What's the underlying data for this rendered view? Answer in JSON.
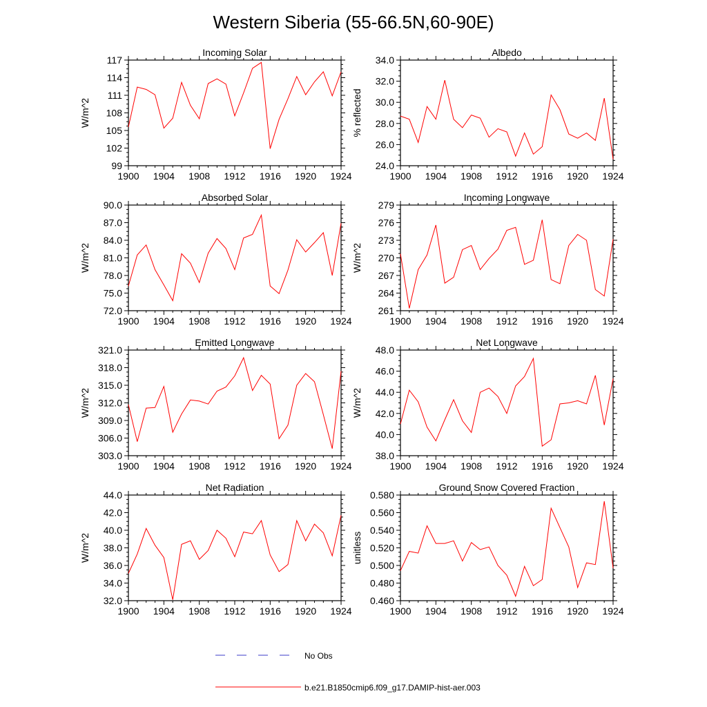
{
  "figure": {
    "title": "Western Siberia (55-66.5N,60-90E)"
  },
  "legend": {
    "entries": [
      {
        "label": "No Obs",
        "color": "#3b3bc8",
        "dash": "dashed"
      },
      {
        "label": "b.e21.B1850cmip6.f09_g17.DAMIP-hist-aer.003",
        "color": "#ff0000",
        "dash": "solid"
      }
    ]
  },
  "chart_data": [
    {
      "type": "line",
      "title": "Incoming Solar",
      "ylabel": "W/m^2",
      "x": [
        1900,
        1901,
        1902,
        1903,
        1904,
        1905,
        1906,
        1907,
        1908,
        1909,
        1910,
        1911,
        1912,
        1913,
        1914,
        1915,
        1916,
        1917,
        1918,
        1919,
        1920,
        1921,
        1922,
        1923,
        1924
      ],
      "xlim": [
        1900,
        1924
      ],
      "xticks": [
        "1900",
        "1904",
        "1908",
        "1912",
        "1916",
        "1920",
        "1924"
      ],
      "ylim": [
        99,
        117
      ],
      "yticks": [
        "99",
        "102",
        "105",
        "108",
        "111",
        "114",
        "117"
      ],
      "series": [
        {
          "values": [
            105.6,
            112.4,
            112.0,
            111.1,
            105.4,
            107.1,
            113.2,
            109.3,
            107.0,
            113.0,
            113.8,
            112.9,
            107.5,
            111.4,
            115.6,
            116.6,
            101.9,
            106.9,
            110.4,
            114.2,
            111.1,
            113.3,
            115.0,
            110.9,
            115.0
          ]
        }
      ]
    },
    {
      "type": "line",
      "title": "Albedo",
      "ylabel": "% reflected",
      "x": [
        1900,
        1901,
        1902,
        1903,
        1904,
        1905,
        1906,
        1907,
        1908,
        1909,
        1910,
        1911,
        1912,
        1913,
        1914,
        1915,
        1916,
        1917,
        1918,
        1919,
        1920,
        1921,
        1922,
        1923,
        1924
      ],
      "xlim": [
        1900,
        1924
      ],
      "xticks": [
        "1900",
        "1904",
        "1908",
        "1912",
        "1916",
        "1920",
        "1924"
      ],
      "ylim": [
        24,
        34
      ],
      "yticks": [
        "24.0",
        "26.0",
        "28.0",
        "30.0",
        "32.0",
        "34.0"
      ],
      "series": [
        {
          "values": [
            28.7,
            28.4,
            26.2,
            29.6,
            28.4,
            32.1,
            28.4,
            27.6,
            28.8,
            28.5,
            26.7,
            27.5,
            27.2,
            24.9,
            27.1,
            25.1,
            25.8,
            30.7,
            29.3,
            27.0,
            26.6,
            27.1,
            26.4,
            30.4,
            24.6
          ]
        }
      ]
    },
    {
      "type": "line",
      "title": "Absorbed Solar",
      "ylabel": "W/m^2",
      "x": [
        1900,
        1901,
        1902,
        1903,
        1904,
        1905,
        1906,
        1907,
        1908,
        1909,
        1910,
        1911,
        1912,
        1913,
        1914,
        1915,
        1916,
        1917,
        1918,
        1919,
        1920,
        1921,
        1922,
        1923,
        1924
      ],
      "xlim": [
        1900,
        1924
      ],
      "xticks": [
        "1900",
        "1904",
        "1908",
        "1912",
        "1916",
        "1920",
        "1924"
      ],
      "ylim": [
        72,
        90
      ],
      "yticks": [
        "72.0",
        "75.0",
        "78.0",
        "81.0",
        "84.0",
        "87.0",
        "90.0"
      ],
      "series": [
        {
          "values": [
            76.2,
            81.5,
            83.2,
            79.0,
            76.4,
            73.7,
            81.7,
            80.1,
            76.8,
            81.8,
            84.3,
            82.6,
            79.0,
            84.4,
            85.0,
            88.3,
            76.2,
            74.9,
            78.9,
            84.1,
            82.0,
            83.6,
            85.3,
            78.0,
            86.9
          ]
        }
      ]
    },
    {
      "type": "line",
      "title": "Incoming Longwave",
      "ylabel": "W/m^2",
      "x": [
        1900,
        1901,
        1902,
        1903,
        1904,
        1905,
        1906,
        1907,
        1908,
        1909,
        1910,
        1911,
        1912,
        1913,
        1914,
        1915,
        1916,
        1917,
        1918,
        1919,
        1920,
        1921,
        1922,
        1923,
        1924
      ],
      "xlim": [
        1900,
        1924
      ],
      "xticks": [
        "1900",
        "1904",
        "1908",
        "1912",
        "1916",
        "1920",
        "1924"
      ],
      "ylim": [
        261,
        279
      ],
      "yticks": [
        "261",
        "264",
        "267",
        "270",
        "273",
        "276",
        "279"
      ],
      "series": [
        {
          "values": [
            270.7,
            261.4,
            268.0,
            270.5,
            275.6,
            265.7,
            266.7,
            271.4,
            272.1,
            268.0,
            269.9,
            271.5,
            274.7,
            275.2,
            268.9,
            269.6,
            276.5,
            266.3,
            265.6,
            272.1,
            274.0,
            273.0,
            264.6,
            263.5,
            273.2
          ]
        }
      ]
    },
    {
      "type": "line",
      "title": "Emitted Longwave",
      "ylabel": "W/m^2",
      "x": [
        1900,
        1901,
        1902,
        1903,
        1904,
        1905,
        1906,
        1907,
        1908,
        1909,
        1910,
        1911,
        1912,
        1913,
        1914,
        1915,
        1916,
        1917,
        1918,
        1919,
        1920,
        1921,
        1922,
        1923,
        1924
      ],
      "xlim": [
        1900,
        1924
      ],
      "xticks": [
        "1900",
        "1904",
        "1908",
        "1912",
        "1916",
        "1920",
        "1924"
      ],
      "ylim": [
        303,
        321
      ],
      "yticks": [
        "303.0",
        "306.0",
        "309.0",
        "312.0",
        "315.0",
        "318.0",
        "321.0"
      ],
      "series": [
        {
          "values": [
            311.7,
            305.4,
            311.1,
            311.2,
            314.8,
            307.0,
            310.1,
            312.5,
            312.3,
            311.8,
            314.0,
            314.7,
            316.6,
            319.7,
            314.1,
            316.7,
            315.2,
            305.9,
            308.2,
            315.0,
            317.0,
            315.6,
            310.0,
            304.2,
            317.4
          ]
        }
      ]
    },
    {
      "type": "line",
      "title": "Net Longwave",
      "ylabel": "W/m^2",
      "x": [
        1900,
        1901,
        1902,
        1903,
        1904,
        1905,
        1906,
        1907,
        1908,
        1909,
        1910,
        1911,
        1912,
        1913,
        1914,
        1915,
        1916,
        1917,
        1918,
        1919,
        1920,
        1921,
        1922,
        1923,
        1924
      ],
      "xlim": [
        1900,
        1924
      ],
      "xticks": [
        "1900",
        "1904",
        "1908",
        "1912",
        "1916",
        "1920",
        "1924"
      ],
      "ylim": [
        38,
        48
      ],
      "yticks": [
        "38.0",
        "40.0",
        "42.0",
        "44.0",
        "46.0",
        "48.0"
      ],
      "series": [
        {
          "values": [
            41.0,
            44.2,
            43.1,
            40.7,
            39.4,
            41.4,
            43.3,
            41.3,
            40.2,
            44.0,
            44.4,
            43.6,
            42.0,
            44.6,
            45.5,
            47.2,
            38.9,
            39.5,
            42.9,
            43.0,
            43.2,
            42.9,
            45.6,
            40.9,
            45.3
          ]
        }
      ]
    },
    {
      "type": "line",
      "title": "Net Radiation",
      "ylabel": "W/m^2",
      "x": [
        1900,
        1901,
        1902,
        1903,
        1904,
        1905,
        1906,
        1907,
        1908,
        1909,
        1910,
        1911,
        1912,
        1913,
        1914,
        1915,
        1916,
        1917,
        1918,
        1919,
        1920,
        1921,
        1922,
        1923,
        1924
      ],
      "xlim": [
        1900,
        1924
      ],
      "xticks": [
        "1900",
        "1904",
        "1908",
        "1912",
        "1916",
        "1920",
        "1924"
      ],
      "ylim": [
        32,
        44
      ],
      "yticks": [
        "32.0",
        "34.0",
        "36.0",
        "38.0",
        "40.0",
        "42.0",
        "44.0"
      ],
      "series": [
        {
          "values": [
            35.1,
            37.3,
            40.2,
            38.3,
            36.9,
            32.1,
            38.4,
            38.8,
            36.7,
            37.7,
            40.0,
            39.1,
            37.0,
            39.8,
            39.6,
            41.1,
            37.2,
            35.3,
            36.1,
            41.1,
            38.8,
            40.7,
            39.7,
            37.1,
            41.7
          ]
        }
      ]
    },
    {
      "type": "line",
      "title": "Ground Snow Covered Fraction",
      "ylabel": "unitless",
      "x": [
        1900,
        1901,
        1902,
        1903,
        1904,
        1905,
        1906,
        1907,
        1908,
        1909,
        1910,
        1911,
        1912,
        1913,
        1914,
        1915,
        1916,
        1917,
        1918,
        1919,
        1920,
        1921,
        1922,
        1923,
        1924
      ],
      "xlim": [
        1900,
        1924
      ],
      "xticks": [
        "1900",
        "1904",
        "1908",
        "1912",
        "1916",
        "1920",
        "1924"
      ],
      "ylim": [
        0.46,
        0.58
      ],
      "yticks": [
        "0.460",
        "0.480",
        "0.500",
        "0.520",
        "0.540",
        "0.560",
        "0.580"
      ],
      "series": [
        {
          "values": [
            0.494,
            0.516,
            0.514,
            0.545,
            0.525,
            0.525,
            0.528,
            0.505,
            0.526,
            0.518,
            0.521,
            0.5,
            0.489,
            0.465,
            0.499,
            0.477,
            0.484,
            0.565,
            0.543,
            0.521,
            0.475,
            0.503,
            0.501,
            0.573,
            0.497
          ]
        }
      ]
    }
  ]
}
